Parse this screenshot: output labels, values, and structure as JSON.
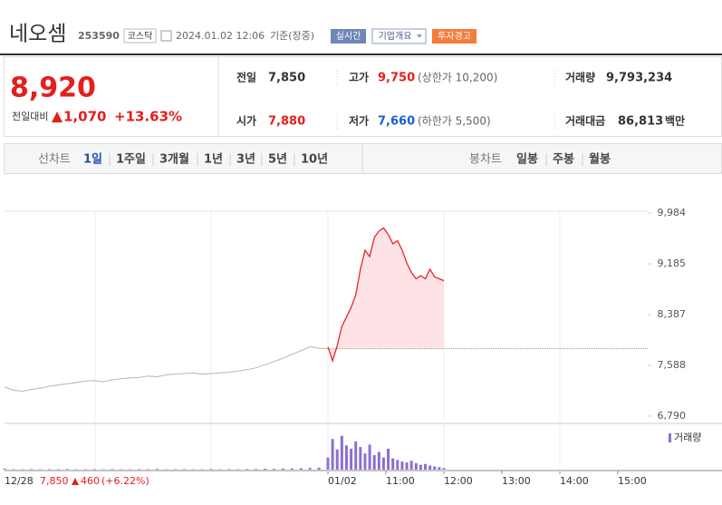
{
  "header": {
    "name": "네오셈",
    "code": "253590",
    "market": "코스닥",
    "datetime": "2024.01.02 12:06",
    "status": "기준(장중)",
    "badges": [
      "실시간",
      "기업개요",
      "투자경고"
    ]
  },
  "summary": {
    "price": "8,920",
    "change_label": "전일대비",
    "change": "1,070",
    "change_pct": "+13.63%",
    "stats": [
      {
        "label": "전일",
        "value": "7,850"
      },
      {
        "label": "고가",
        "value": "9,750",
        "note": "(상한가 10,200)"
      },
      {
        "label": "거래량",
        "value": "9,793,234"
      },
      {
        "label": "시가",
        "value": "7,880"
      },
      {
        "label": "저가",
        "value": "7,660",
        "note": "(하한가 5,500)"
      },
      {
        "label": "거래대금",
        "value": "86,813",
        "unit": "백만"
      }
    ]
  },
  "tabs": {
    "line_label": "선차트",
    "line": [
      "1일",
      "1주일",
      "3개월",
      "1년",
      "3년",
      "5년",
      "10년"
    ],
    "candle_label": "봉차트",
    "candle": [
      "일봉",
      "주봉",
      "월봉"
    ]
  },
  "chart_data": {
    "type": "line",
    "x_labels": [
      "12/28",
      "01/02",
      "11:00",
      "12:00",
      "13:00",
      "14:00",
      "15:00"
    ],
    "ylim": [
      6790,
      9984
    ],
    "yticks": [
      {
        "value": 6790,
        "label": "6,790"
      },
      {
        "value": 7588,
        "label": "7,588"
      },
      {
        "value": 8387,
        "label": "8,387"
      },
      {
        "value": 9185,
        "label": "9,185"
      },
      {
        "value": 9984,
        "label": "9,984"
      }
    ],
    "baseline": 7850,
    "series": [
      {
        "color": "#b5b5b5",
        "values": [
          7246,
          7200,
          7180,
          7210,
          7230,
          7260,
          7280,
          7300,
          7320,
          7340,
          7350,
          7330,
          7360,
          7380,
          7390,
          7400,
          7420,
          7410,
          7440,
          7450,
          7460,
          7470,
          7450,
          7460,
          7470,
          7480,
          7500,
          7520,
          7550,
          7600,
          7650,
          7700,
          7760,
          7820,
          7880,
          7860,
          7850
        ],
        "volume": [
          12000,
          6000,
          5000,
          7000,
          4000,
          6000,
          5000,
          8000,
          4000,
          5000,
          6000,
          4000,
          7000,
          5000,
          4000,
          6000,
          5000,
          9000,
          4000,
          5000,
          6000,
          4000,
          5000,
          7000,
          4000,
          6000,
          5000,
          8000,
          9000,
          12000,
          10000,
          14000,
          15000,
          18000,
          20000,
          25000,
          30000
        ]
      },
      {
        "color": "#e8262c",
        "values": [
          7880,
          7660,
          7900,
          8200,
          8350,
          8500,
          8700,
          9100,
          9400,
          9300,
          9600,
          9700,
          9750,
          9650,
          9500,
          9550,
          9400,
          9200,
          9050,
          8950,
          9000,
          8950,
          9100,
          8980,
          8950,
          8920
        ],
        "volume": [
          150000,
          380000,
          250000,
          420000,
          300000,
          260000,
          350000,
          280000,
          200000,
          310000,
          180000,
          220000,
          150000,
          260000,
          140000,
          120000,
          100000,
          90000,
          110000,
          80000,
          60000,
          70000,
          50000,
          40000,
          30000,
          20000
        ]
      }
    ],
    "volume_name": "거래량",
    "volume_color": "#8b6fd1",
    "volume_ylim": [
      0,
      450000
    ],
    "footer": {
      "close": "7,850",
      "change": "460",
      "change_pct": "(+6.22%)"
    }
  }
}
